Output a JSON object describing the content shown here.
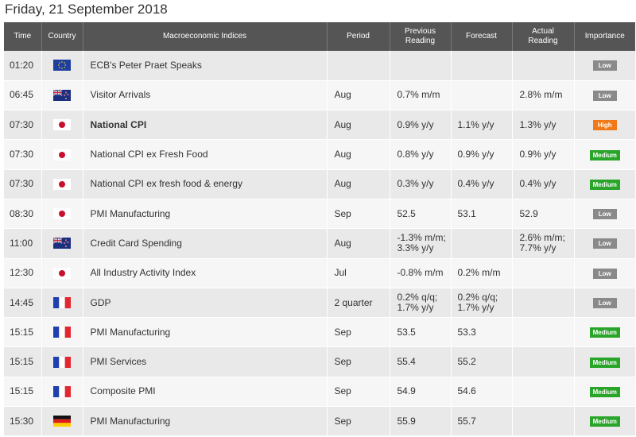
{
  "page": {
    "title": "Friday, 21 September 2018"
  },
  "columns": {
    "time": "Time",
    "country": "Country",
    "index": "Macroeconomic Indices",
    "period": "Period",
    "previous_line1": "Previous",
    "previous_line2": "Reading",
    "forecast": "Forecast",
    "actual_line1": "Actual",
    "actual_line2": "Reading",
    "importance": "Importance"
  },
  "rows": [
    {
      "time": "01:20",
      "country_icon": "eu-flag-icon",
      "index": "ECB's Peter Praet Speaks",
      "period": "",
      "previous1": "",
      "previous2": "",
      "forecast1": "",
      "forecast2": "",
      "actual1": "",
      "actual2": "",
      "actual_color": "",
      "importance": "Low",
      "level": "low",
      "bold": false
    },
    {
      "time": "06:45",
      "country_icon": "nz-flag-icon",
      "index": "Visitor Arrivals",
      "period": "Aug",
      "previous1": "0.7% m/m",
      "previous2": "",
      "forecast1": "",
      "forecast2": "",
      "actual1": "2.8% m/m",
      "actual2": "",
      "actual_color": "",
      "importance": "Low",
      "level": "low",
      "bold": false
    },
    {
      "time": "07:30",
      "country_icon": "japan-flag-icon",
      "index": "National CPI",
      "period": "Aug",
      "previous1": "0.9% y/y",
      "previous2": "",
      "forecast1": "1.1% y/y",
      "forecast2": "",
      "actual1": "1.3% y/y",
      "actual2": "",
      "actual_color": "green",
      "importance": "High",
      "level": "high",
      "bold": true
    },
    {
      "time": "07:30",
      "country_icon": "japan-flag-icon",
      "index": "National CPI ex Fresh Food",
      "period": "Aug",
      "previous1": "0.8% y/y",
      "previous2": "",
      "forecast1": "0.9% y/y",
      "forecast2": "",
      "actual1": "0.9% y/y",
      "actual2": "",
      "actual_color": "",
      "importance": "Medium",
      "level": "medium",
      "bold": false
    },
    {
      "time": "07:30",
      "country_icon": "japan-flag-icon",
      "index": "National CPI ex fresh food & energy",
      "period": "Aug",
      "previous1": "0.3% y/y",
      "previous2": "",
      "forecast1": "0.4% y/y",
      "forecast2": "",
      "actual1": "0.4% y/y",
      "actual2": "",
      "actual_color": "",
      "importance": "Medium",
      "level": "medium",
      "bold": false
    },
    {
      "time": "08:30",
      "country_icon": "japan-flag-icon",
      "index": "PMI Manufacturing",
      "period": "Sep",
      "previous1": "52.5",
      "previous2": "",
      "forecast1": "53.1",
      "forecast2": "",
      "actual1": "52.9",
      "actual2": "",
      "actual_color": "red",
      "importance": "Low",
      "level": "low",
      "bold": false
    },
    {
      "time": "11:00",
      "country_icon": "nz-flag-icon",
      "index": "Credit Card Spending",
      "period": "Aug",
      "previous1": "-1.3% m/m;",
      "previous2": "3.3% y/y",
      "forecast1": "",
      "forecast2": "",
      "actual1": "2.6% m/m;",
      "actual2": "7.7% y/y",
      "actual_color": "",
      "importance": "Low",
      "level": "low",
      "bold": false
    },
    {
      "time": "12:30",
      "country_icon": "japan-flag-icon",
      "index": "All Industry Activity Index",
      "period": "Jul",
      "previous1": "-0.8% m/m",
      "previous2": "",
      "forecast1": "0.2% m/m",
      "forecast2": "",
      "actual1": "",
      "actual2": "",
      "actual_color": "",
      "importance": "Low",
      "level": "low",
      "bold": false
    },
    {
      "time": "14:45",
      "country_icon": "france-flag-icon",
      "index": "GDP",
      "period": "2 quarter",
      "previous1": "0.2% q/q;",
      "previous2": "1.7% y/y",
      "forecast1": "0.2% q/q;",
      "forecast2": "1.7% y/y",
      "actual1": "",
      "actual2": "",
      "actual_color": "",
      "importance": "Low",
      "level": "low",
      "bold": false
    },
    {
      "time": "15:15",
      "country_icon": "france-flag-icon",
      "index": "PMI Manufacturing",
      "period": "Sep",
      "previous1": "53.5",
      "previous2": "",
      "forecast1": "53.3",
      "forecast2": "",
      "actual1": "",
      "actual2": "",
      "actual_color": "",
      "importance": "Medium",
      "level": "medium",
      "bold": false
    },
    {
      "time": "15:15",
      "country_icon": "france-flag-icon",
      "index": "PMI Services",
      "period": "Sep",
      "previous1": "55.4",
      "previous2": "",
      "forecast1": "55.2",
      "forecast2": "",
      "actual1": "",
      "actual2": "",
      "actual_color": "",
      "importance": "Medium",
      "level": "medium",
      "bold": false
    },
    {
      "time": "15:15",
      "country_icon": "france-flag-icon",
      "index": "Composite PMI",
      "period": "Sep",
      "previous1": "54.9",
      "previous2": "",
      "forecast1": "54.6",
      "forecast2": "",
      "actual1": "",
      "actual2": "",
      "actual_color": "",
      "importance": "Medium",
      "level": "medium",
      "bold": false
    },
    {
      "time": "15:30",
      "country_icon": "germany-flag-icon",
      "index": "PMI Manufacturing",
      "period": "Sep",
      "previous1": "55.9",
      "previous2": "",
      "forecast1": "55.7",
      "forecast2": "",
      "actual1": "",
      "actual2": "",
      "actual_color": "",
      "importance": "Medium",
      "level": "medium",
      "bold": false
    }
  ],
  "colors": {
    "header_bg": "#555555",
    "low": "#8a8a8a",
    "medium": "#2aa52a",
    "high": "#f07a1a",
    "actual_green": "#2a9d2a",
    "actual_red": "#e03a2f"
  }
}
